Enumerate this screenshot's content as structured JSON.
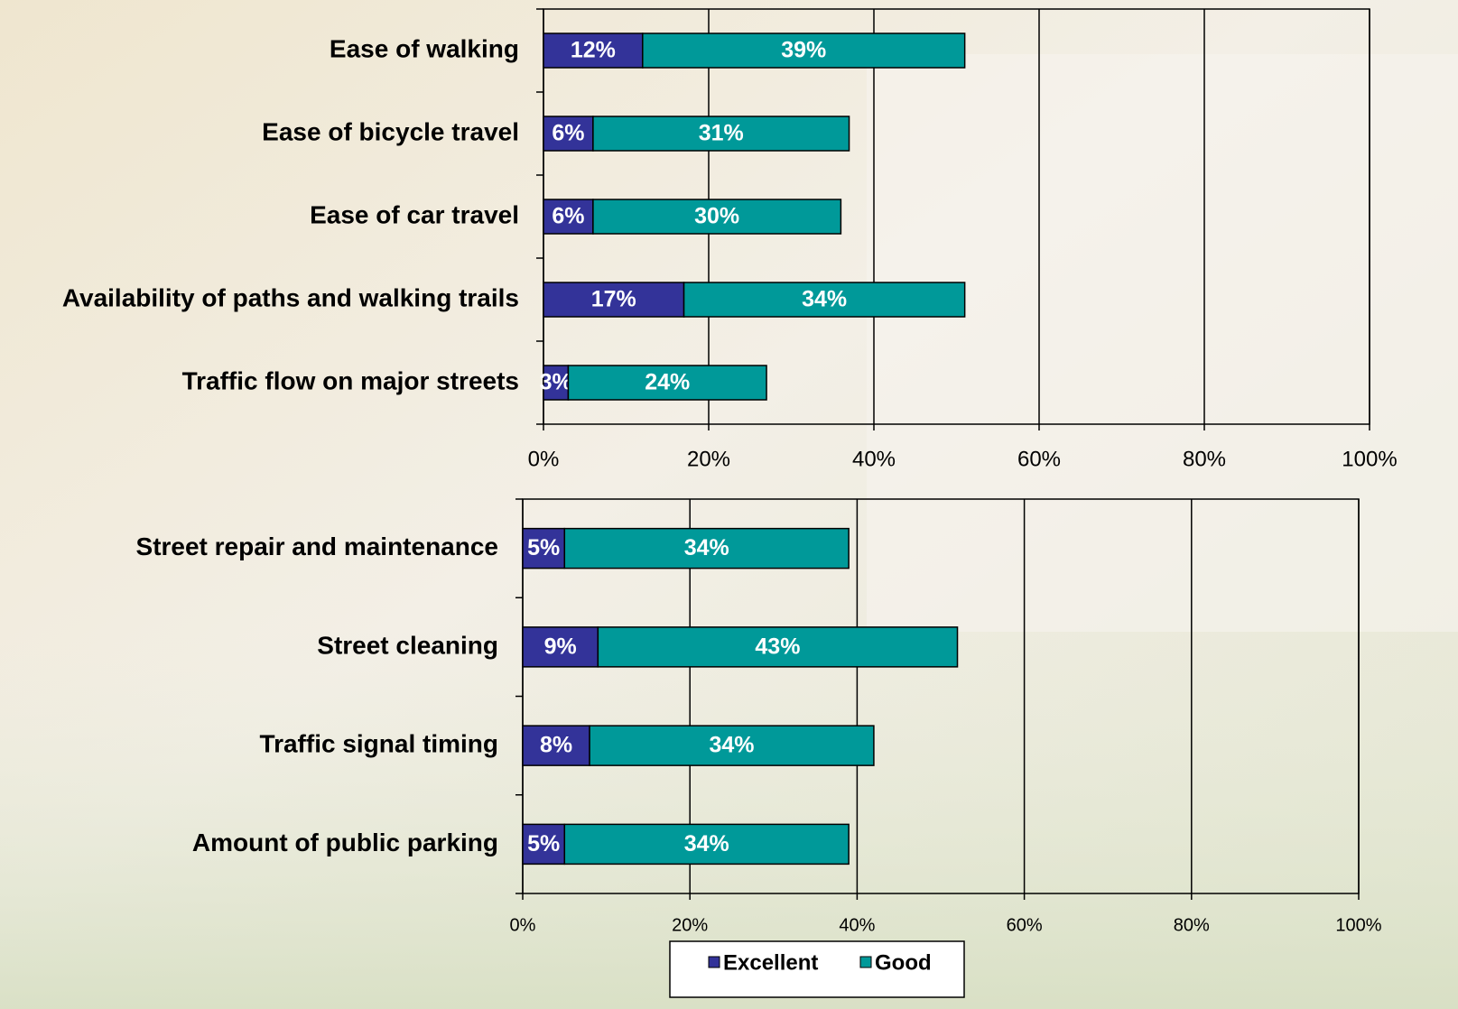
{
  "chart_data": [
    {
      "type": "stacked-bar-horizontal",
      "categories": [
        "Ease of walking",
        "Ease of bicycle travel",
        "Ease of car travel",
        "Availability of paths and walking trails",
        "Traffic flow on major streets"
      ],
      "series": [
        {
          "name": "Excellent",
          "color": "#333399",
          "values": [
            12,
            6,
            6,
            17,
            3
          ],
          "value_labels": [
            "12%",
            "6%",
            "6%",
            "17%",
            "3%"
          ]
        },
        {
          "name": "Good",
          "color": "#009999",
          "values": [
            39,
            31,
            30,
            34,
            24
          ],
          "value_labels": [
            "39%",
            "31%",
            "30%",
            "34%",
            "24%"
          ]
        }
      ],
      "xlim": [
        0,
        100
      ],
      "xticks": [
        {
          "value": 0,
          "label": "0%"
        },
        {
          "value": 20,
          "label": "20%"
        },
        {
          "value": 40,
          "label": "40%"
        },
        {
          "value": 60,
          "label": "60%"
        },
        {
          "value": 80,
          "label": "80%"
        },
        {
          "value": 100,
          "label": "100%"
        }
      ],
      "grid": true,
      "legend": false
    },
    {
      "type": "stacked-bar-horizontal",
      "categories": [
        "Street repair and maintenance",
        "Street cleaning",
        "Traffic signal timing",
        "Amount of public parking"
      ],
      "series": [
        {
          "name": "Excellent",
          "color": "#333399",
          "values": [
            5,
            9,
            8,
            5
          ],
          "value_labels": [
            "5%",
            "9%",
            "8%",
            "5%"
          ]
        },
        {
          "name": "Good",
          "color": "#009999",
          "values": [
            34,
            43,
            34,
            34
          ],
          "value_labels": [
            "34%",
            "43%",
            "34%",
            "34%"
          ]
        }
      ],
      "xlim": [
        0,
        100
      ],
      "xticks": [
        {
          "value": 0,
          "label": "0%"
        },
        {
          "value": 20,
          "label": "20%"
        },
        {
          "value": 40,
          "label": "40%"
        },
        {
          "value": 60,
          "label": "60%"
        },
        {
          "value": 80,
          "label": "80%"
        },
        {
          "value": 100,
          "label": "100%"
        }
      ],
      "grid": true,
      "legend": "bottom"
    }
  ]
}
